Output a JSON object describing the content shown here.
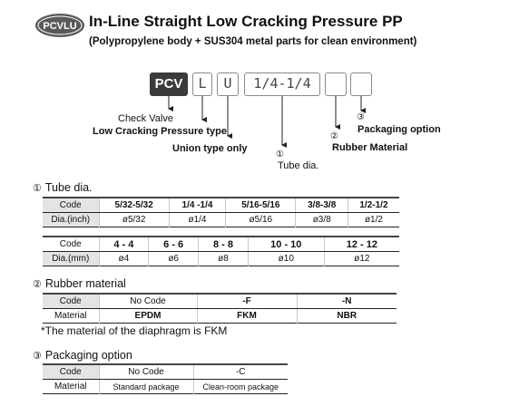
{
  "header": {
    "logo_text": "PCVLU",
    "title": "In-Line Straight Low Cracking Pressure PP",
    "subtitle": "(Polypropylene body + SUS304 metal parts for clean environment)"
  },
  "code_diagram": {
    "boxes": [
      "PCV",
      "L",
      "U",
      "1/4-1/4",
      "",
      ""
    ],
    "labels": {
      "check_valve": "Check Valve",
      "low_cracking": "Low Cracking Pressure type",
      "union_type": "Union type only",
      "tube_dia_num": "①",
      "tube_dia": "Tube dia.",
      "rubber_num": "②",
      "rubber": "Rubber Material",
      "packaging_num": "③",
      "packaging": "Packaging option"
    }
  },
  "tube_dia": {
    "num": "①",
    "title": "Tube dia.",
    "inch_table": {
      "row1_label": "Code",
      "row2_label": "Dia.(inch)",
      "codes": [
        "5/32-5/32",
        "1/4 -1/4",
        "5/16-5/16",
        "3/8-3/8",
        "1/2-1/2"
      ],
      "dias": [
        "ø5/32",
        "ø1/4",
        "ø5/16",
        "ø3/8",
        "ø1/2"
      ]
    },
    "mm_table": {
      "row1_label": "Code",
      "row2_label": "Dia.(mm)",
      "codes": [
        "4 - 4",
        "6 - 6",
        "8 - 8",
        "10 - 10",
        "12 - 12"
      ],
      "dias": [
        "ø4",
        "ø6",
        "ø8",
        "ø10",
        "ø12"
      ]
    }
  },
  "rubber_material": {
    "num": "②",
    "title": "Rubber material",
    "row1_label": "Code",
    "row2_label": "Material",
    "codes": [
      "No Code",
      "-F",
      "-N"
    ],
    "materials": [
      "EPDM",
      "FKM",
      "NBR"
    ],
    "note": "*The material of the diaphragm is FKM"
  },
  "packaging_option": {
    "num": "③",
    "title": "Packaging option",
    "row1_label": "Code",
    "row2_label": "Material",
    "codes": [
      "No Code",
      "-C"
    ],
    "materials": [
      "Standard package",
      "Clean-room package"
    ]
  }
}
